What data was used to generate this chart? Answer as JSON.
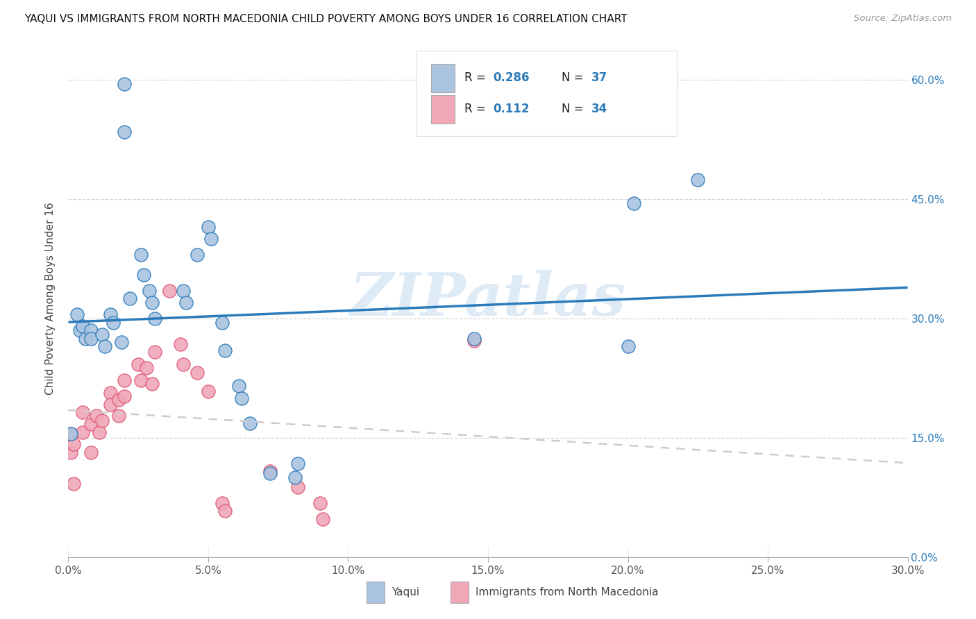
{
  "title": "YAQUI VS IMMIGRANTS FROM NORTH MACEDONIA CHILD POVERTY AMONG BOYS UNDER 16 CORRELATION CHART",
  "source": "Source: ZipAtlas.com",
  "ylabel_label": "Child Poverty Among Boys Under 16",
  "xlim": [
    0.0,
    0.3
  ],
  "ylim": [
    0.0,
    0.65
  ],
  "yaqui_R": "0.286",
  "yaqui_N": "37",
  "nm_R": "0.112",
  "nm_N": "34",
  "yaqui_color": "#aac4e0",
  "yaqui_line_color": "#2b7bba",
  "nm_color": "#f0a8b8",
  "nm_line_color": "#e05878",
  "nm_dash_color": "#cccccc",
  "watermark": "ZIPatlas",
  "watermark_color": "#c8dff0",
  "yaqui_x": [
    0.001,
    0.02,
    0.02,
    0.003,
    0.004,
    0.005,
    0.006,
    0.008,
    0.008,
    0.012,
    0.013,
    0.015,
    0.016,
    0.019,
    0.022,
    0.026,
    0.027,
    0.029,
    0.03,
    0.031,
    0.041,
    0.042,
    0.046,
    0.05,
    0.051,
    0.055,
    0.056,
    0.061,
    0.062,
    0.065,
    0.072,
    0.081,
    0.082,
    0.145,
    0.2,
    0.202,
    0.225
  ],
  "yaqui_y": [
    0.155,
    0.595,
    0.535,
    0.305,
    0.285,
    0.29,
    0.275,
    0.285,
    0.275,
    0.28,
    0.265,
    0.305,
    0.295,
    0.27,
    0.325,
    0.38,
    0.355,
    0.335,
    0.32,
    0.3,
    0.335,
    0.32,
    0.38,
    0.415,
    0.4,
    0.295,
    0.26,
    0.215,
    0.2,
    0.168,
    0.105,
    0.1,
    0.118,
    0.275,
    0.265,
    0.445,
    0.475
  ],
  "nm_x": [
    0.001,
    0.001,
    0.002,
    0.002,
    0.005,
    0.005,
    0.008,
    0.008,
    0.01,
    0.011,
    0.012,
    0.015,
    0.015,
    0.018,
    0.018,
    0.02,
    0.02,
    0.025,
    0.026,
    0.028,
    0.03,
    0.031,
    0.036,
    0.04,
    0.041,
    0.046,
    0.05,
    0.055,
    0.056,
    0.072,
    0.082,
    0.09,
    0.091,
    0.145
  ],
  "nm_y": [
    0.155,
    0.132,
    0.142,
    0.092,
    0.182,
    0.157,
    0.167,
    0.132,
    0.178,
    0.157,
    0.172,
    0.207,
    0.192,
    0.198,
    0.178,
    0.222,
    0.202,
    0.242,
    0.222,
    0.238,
    0.218,
    0.258,
    0.335,
    0.268,
    0.242,
    0.232,
    0.208,
    0.068,
    0.058,
    0.108,
    0.088,
    0.068,
    0.048,
    0.272
  ],
  "x_tick_vals": [
    0.0,
    0.05,
    0.1,
    0.15,
    0.2,
    0.25,
    0.3
  ],
  "x_tick_labels": [
    "0.0%",
    "5.0%",
    "10.0%",
    "15.0%",
    "20.0%",
    "25.0%",
    "30.0%"
  ],
  "y_tick_vals": [
    0.0,
    0.15,
    0.3,
    0.45,
    0.6
  ],
  "y_tick_labels": [
    "0.0%",
    "15.0%",
    "30.0%",
    "45.0%",
    "60.0%"
  ]
}
